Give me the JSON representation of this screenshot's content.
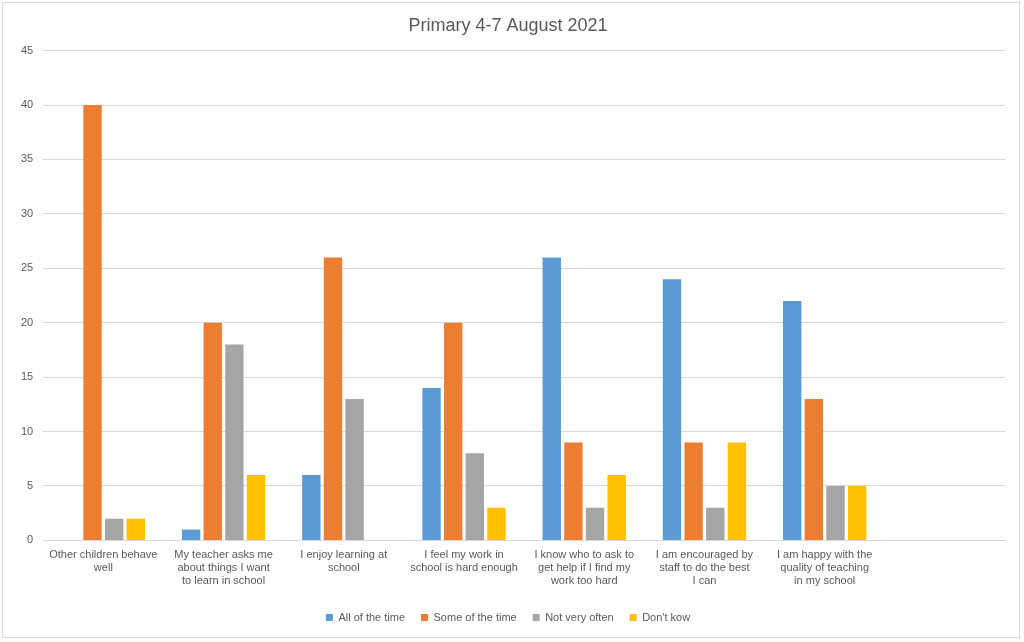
{
  "chart_data": {
    "type": "bar",
    "title": "Primary 4-7 August 2021",
    "categories": [
      "Other children behave well",
      "My teacher asks me about things I want to learn in school",
      "I enjoy learning at school",
      "I feel my work in school is hard enough",
      "I know who to ask to get help if I find my work too hard",
      "I am encouraged by staff to do the best I can",
      "I am happy with the quality of teaching in my school",
      null
    ],
    "series": [
      {
        "name": "All of the time",
        "color": "#5b9bd5",
        "values": [
          0,
          1,
          6,
          14,
          26,
          24,
          22,
          null
        ]
      },
      {
        "name": "Some of the time",
        "color": "#ed7d31",
        "values": [
          40,
          20,
          26,
          20,
          9,
          9,
          13,
          null
        ]
      },
      {
        "name": "Not very often",
        "color": "#a5a5a5",
        "values": [
          2,
          18,
          13,
          8,
          3,
          3,
          5,
          null
        ]
      },
      {
        "name": "Don't kow",
        "color": "#ffc000",
        "values": [
          2,
          6,
          0,
          3,
          6,
          9,
          5,
          null
        ]
      }
    ],
    "ylim": [
      0,
      45
    ],
    "yticks": [
      0,
      5,
      10,
      15,
      20,
      25,
      30,
      35,
      40,
      45
    ],
    "grid": true,
    "legend": "bottom"
  }
}
